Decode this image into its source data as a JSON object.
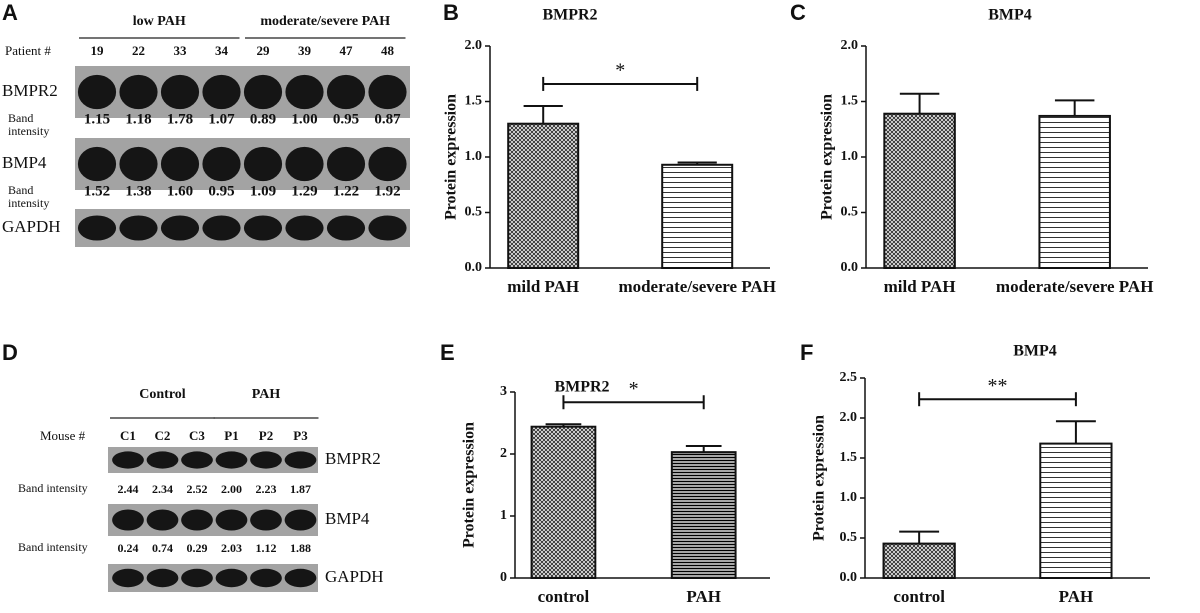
{
  "blots": [
    {
      "panel": "A",
      "sample_label": "Patient #",
      "groups": [
        {
          "label": "low PAH",
          "samples": [
            "19",
            "22",
            "33",
            "34"
          ]
        },
        {
          "label": "moderate/severe PAH",
          "samples": [
            "29",
            "39",
            "47",
            "48"
          ]
        }
      ],
      "rows": [
        {
          "label": "BMPR2",
          "intensity_label": "Band intensity",
          "intensities": [
            "1.15",
            "1.18",
            "1.78",
            "1.07",
            "0.89",
            "1.00",
            "0.95",
            "0.87"
          ]
        },
        {
          "label": "BMP4",
          "intensity_label": "Band intensity",
          "intensities": [
            "1.52",
            "1.38",
            "1.60",
            "0.95",
            "1.09",
            "1.29",
            "1.22",
            "1.92"
          ]
        },
        {
          "label": "GAPDH"
        }
      ]
    },
    {
      "panel": "D",
      "sample_label": "Mouse #",
      "groups": [
        {
          "label": "Control",
          "samples": [
            "C1",
            "C2",
            "C3"
          ]
        },
        {
          "label": "PAH",
          "samples": [
            "P1",
            "P2",
            "P3"
          ]
        }
      ],
      "rows": [
        {
          "label": "BMPR2",
          "intensity_label": "Band intensity",
          "intensities": [
            "2.44",
            "2.34",
            "2.52",
            "2.00",
            "2.23",
            "1.87"
          ]
        },
        {
          "label": "BMP4",
          "intensity_label": "Band intensity",
          "intensities": [
            "0.24",
            "0.74",
            "0.29",
            "2.03",
            "1.12",
            "1.88"
          ]
        },
        {
          "label": "GAPDH"
        }
      ]
    }
  ],
  "chart_data": [
    {
      "type": "bar",
      "panel": "B",
      "title": "BMPR2",
      "y_label": "Protein expression",
      "categories": [
        "mild PAH",
        "moderate/severe PAH"
      ],
      "values": [
        1.3,
        0.93
      ],
      "errors": [
        0.16,
        0.02
      ],
      "patterns": [
        "crosshatch",
        "hlines"
      ],
      "ylim": [
        0,
        2
      ],
      "yticks": [
        {
          "value": 0,
          "label": "0.0"
        },
        0.5,
        {
          "value": 1,
          "label": "1.0"
        },
        1.5,
        {
          "value": 2,
          "label": "2.0"
        }
      ],
      "significance": "*"
    },
    {
      "type": "bar",
      "panel": "C",
      "title": "BMP4",
      "y_label": "Protein expression",
      "categories": [
        "mild PAH",
        "moderate/severe PAH"
      ],
      "values": [
        1.39,
        1.37
      ],
      "errors": [
        0.18,
        0.14
      ],
      "patterns": [
        "crosshatch",
        "hlines"
      ],
      "ylim": [
        0,
        2
      ],
      "yticks": [
        {
          "value": 0,
          "label": "0.0"
        },
        0.5,
        {
          "value": 1,
          "label": "1.0"
        },
        1.5,
        {
          "value": 2,
          "label": "2.0"
        }
      ]
    },
    {
      "type": "bar",
      "panel": "E",
      "title": "BMPR2",
      "y_label": "Protein expression",
      "categories": [
        "control",
        "PAH"
      ],
      "values": [
        2.44,
        2.03
      ],
      "errors": [
        0.04,
        0.1
      ],
      "patterns": [
        "crosshatch",
        "hlines-dense"
      ],
      "ylim": [
        0,
        3
      ],
      "yticks": [
        0,
        1,
        2,
        3
      ],
      "significance": "*"
    },
    {
      "type": "bar",
      "panel": "F",
      "title": "BMP4",
      "y_label": "Protein expression",
      "categories": [
        "control",
        "PAH"
      ],
      "values": [
        0.43,
        1.68
      ],
      "errors": [
        0.15,
        0.28
      ],
      "patterns": [
        "crosshatch",
        "hlines"
      ],
      "ylim": [
        0,
        2.5
      ],
      "yticks": [
        {
          "value": 0,
          "label": "0.0"
        },
        0.5,
        {
          "value": 1,
          "label": "1.0"
        },
        1.5,
        {
          "value": 2,
          "label": "2.0"
        },
        2.5
      ],
      "significance": "**"
    }
  ]
}
